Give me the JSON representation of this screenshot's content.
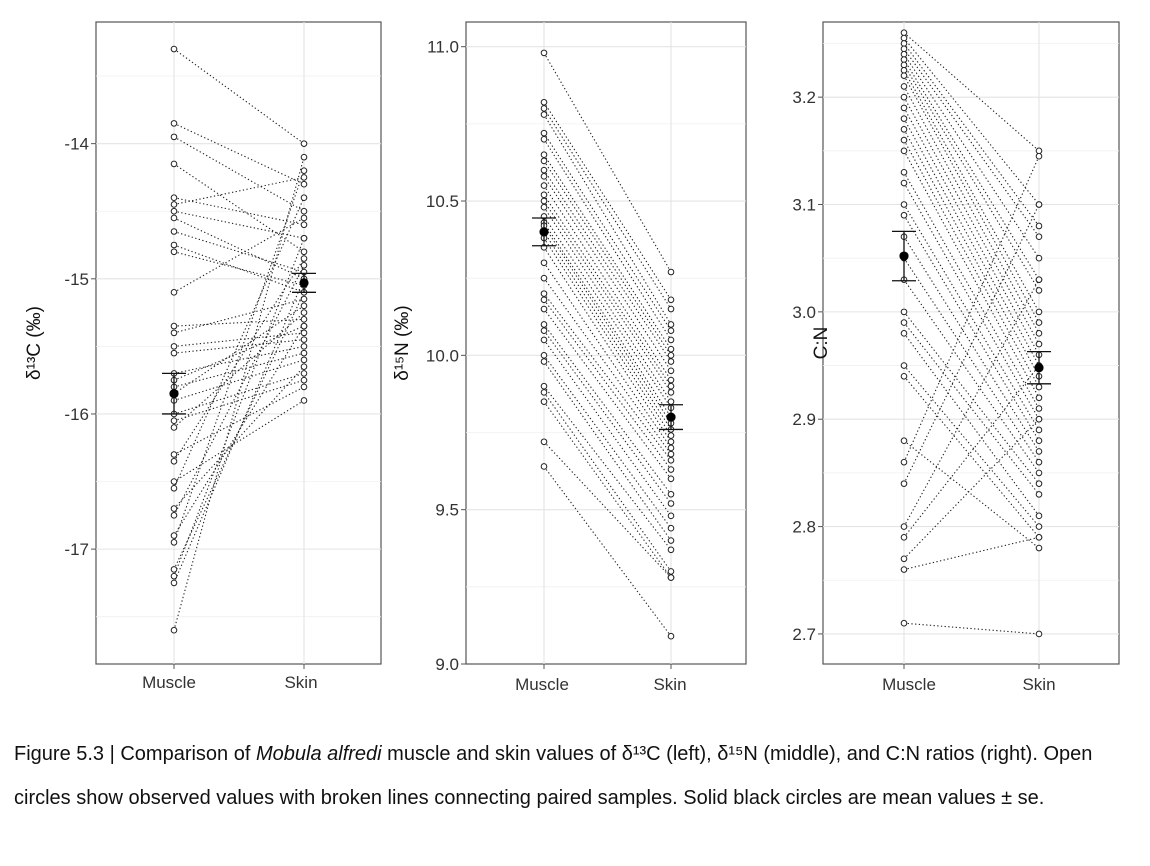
{
  "caption": {
    "prefix": "Figure 5.3 | Comparison of ",
    "species": "Mobula alfredi",
    "suffix": " muscle and skin values of δ¹³C (left), δ¹⁵N (middle), and C:N ratios (right). Open circles show observed values with broken lines connecting paired samples. Solid black circles are mean values ± se."
  },
  "chart_data": [
    {
      "type": "scatter",
      "panel": "left",
      "title": "",
      "xlabel": "",
      "ylabel": "δ¹³C (‰)",
      "categories": [
        "Muscle",
        "Skin"
      ],
      "ylim": [
        -17.85,
        -13.1
      ],
      "yticks": [
        -14,
        -15,
        -16,
        -17
      ],
      "grid": true,
      "paired_lines": "dotted",
      "muscle": [
        -13.3,
        -13.85,
        -13.95,
        -14.15,
        -14.4,
        -14.45,
        -14.5,
        -14.55,
        -14.65,
        -14.75,
        -14.8,
        -15.1,
        -15.35,
        -15.4,
        -15.5,
        -15.55,
        -15.7,
        -15.75,
        -15.8,
        -15.85,
        -15.9,
        -16.0,
        -16.05,
        -16.1,
        -16.3,
        -16.35,
        -16.5,
        -16.55,
        -16.7,
        -16.75,
        -16.9,
        -16.95,
        -17.15,
        -17.2,
        -17.25,
        -17.6
      ],
      "skin": [
        -14.0,
        -14.3,
        -14.5,
        -14.8,
        -14.6,
        -14.25,
        -14.7,
        -15.0,
        -14.95,
        -15.1,
        -15.05,
        -14.55,
        -15.3,
        -15.15,
        -15.4,
        -15.45,
        -15.5,
        -15.35,
        -15.55,
        -15.2,
        -15.6,
        -15.7,
        -15.75,
        -15.25,
        -15.8,
        -14.85,
        -15.9,
        -14.4,
        -15.65,
        -14.9,
        -15.35,
        -14.2,
        -15.1,
        -14.7,
        -15.0,
        -14.1
      ],
      "means": [
        -15.85,
        -15.03
      ],
      "se": [
        0.15,
        0.07
      ]
    },
    {
      "type": "scatter",
      "panel": "middle",
      "title": "",
      "xlabel": "",
      "ylabel": "δ¹⁵N (‰)",
      "categories": [
        "Muscle",
        "Skin"
      ],
      "ylim": [
        9.0,
        11.08
      ],
      "yticks": [
        9.0,
        9.5,
        10.0,
        10.5,
        11.0
      ],
      "grid": true,
      "paired_lines": "dotted",
      "muscle": [
        10.98,
        10.82,
        10.8,
        10.78,
        10.72,
        10.7,
        10.65,
        10.63,
        10.6,
        10.58,
        10.55,
        10.52,
        10.5,
        10.48,
        10.45,
        10.43,
        10.42,
        10.4,
        10.38,
        10.35,
        10.3,
        10.25,
        10.2,
        10.18,
        10.15,
        10.1,
        10.08,
        10.05,
        10.0,
        9.98,
        9.9,
        9.88,
        9.85,
        9.72,
        9.64
      ],
      "skin": [
        10.27,
        10.18,
        10.15,
        10.1,
        10.08,
        10.05,
        10.02,
        10.0,
        9.98,
        9.95,
        9.92,
        9.9,
        9.88,
        9.85,
        9.83,
        9.8,
        9.78,
        9.76,
        9.74,
        9.72,
        9.7,
        9.68,
        9.66,
        9.63,
        9.6,
        9.55,
        9.52,
        9.48,
        9.44,
        9.4,
        9.37,
        9.3,
        9.28,
        9.28,
        9.09
      ],
      "means": [
        10.4,
        9.8
      ],
      "se": [
        0.045,
        0.04
      ]
    },
    {
      "type": "scatter",
      "panel": "right",
      "title": "",
      "xlabel": "",
      "ylabel": "C:N",
      "categories": [
        "Muscle",
        "Skin"
      ],
      "ylim": [
        2.672,
        3.27
      ],
      "yticks": [
        2.7,
        2.8,
        2.9,
        3.0,
        3.1,
        3.2
      ],
      "grid": true,
      "paired_lines": "dotted",
      "muscle": [
        3.26,
        3.255,
        3.25,
        3.245,
        3.24,
        3.235,
        3.23,
        3.225,
        3.22,
        3.21,
        3.2,
        3.19,
        3.18,
        3.17,
        3.16,
        3.15,
        3.13,
        3.12,
        3.1,
        3.09,
        3.07,
        3.05,
        3.03,
        3.0,
        2.99,
        2.98,
        2.95,
        2.94,
        2.88,
        2.86,
        2.84,
        2.8,
        2.79,
        2.77,
        2.76,
        2.71
      ],
      "skin": [
        3.15,
        3.1,
        3.08,
        3.07,
        3.05,
        3.03,
        3.02,
        3.0,
        2.99,
        2.98,
        2.97,
        2.96,
        2.95,
        2.94,
        2.93,
        2.92,
        2.91,
        2.9,
        2.89,
        2.88,
        2.87,
        2.86,
        2.85,
        2.84,
        2.83,
        2.81,
        2.8,
        2.79,
        2.78,
        3.145,
        3.1,
        3.03,
        2.95,
        2.9,
        2.79,
        2.7
      ],
      "means": [
        3.052,
        2.948
      ],
      "se": [
        0.023,
        0.015
      ]
    }
  ]
}
